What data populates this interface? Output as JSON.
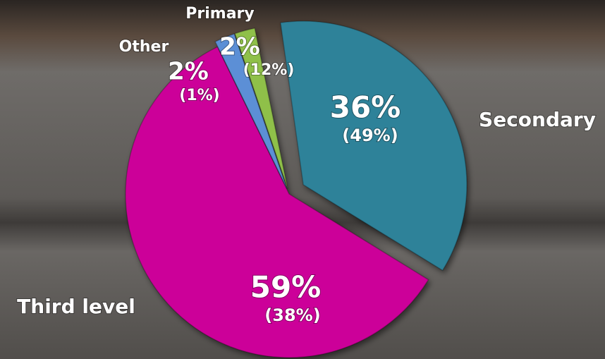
{
  "chart_data": {
    "type": "pie",
    "categories": [
      "Secondary",
      "Third level",
      "Other",
      "Primary"
    ],
    "values": [
      36,
      59,
      2,
      2
    ],
    "value_labels": [
      "36%",
      "59%",
      "2%",
      "2%"
    ],
    "secondary_values": [
      49,
      38,
      1,
      12
    ],
    "secondary_value_labels": [
      "(49%)",
      "(38%)",
      "(1%)",
      "(12%)"
    ],
    "colors": [
      "#2e8299",
      "#cc0099",
      "#5b8fd6",
      "#8fc04a"
    ]
  }
}
